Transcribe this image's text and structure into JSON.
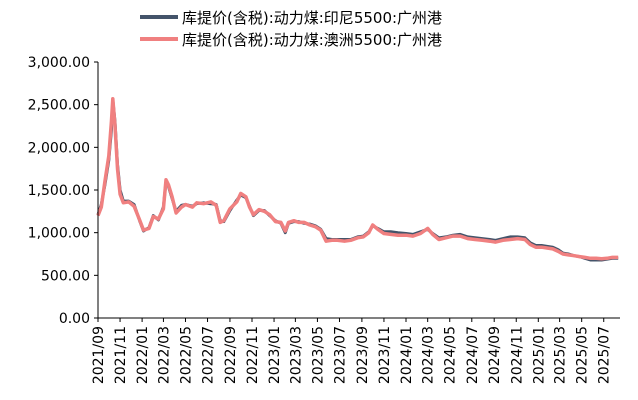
{
  "chart_data": {
    "type": "line",
    "title": "",
    "xlabel": "",
    "ylabel": "",
    "ylim": [
      0,
      3000
    ],
    "yticks": [
      0,
      500,
      1000,
      1500,
      2000,
      2500,
      3000
    ],
    "ytick_labels": [
      "0.00",
      "500.00",
      "1,000.00",
      "1,500.00",
      "2,000.00",
      "2,500.00",
      "3,000.00"
    ],
    "xlim": [
      "2021-09-01",
      "2025-08-15"
    ],
    "xtick_labels": [
      "2021/09",
      "2021/11",
      "2022/01",
      "2022/03",
      "2022/05",
      "2022/07",
      "2022/09",
      "2022/11",
      "2023/01",
      "2023/03",
      "2023/05",
      "2023/07",
      "2023/09",
      "2023/11",
      "2024/01",
      "2024/03",
      "2024/05",
      "2024/07",
      "2024/09",
      "2024/11",
      "2025/01",
      "2025/03",
      "2025/05",
      "2025/07"
    ],
    "legend_position": "top",
    "grid": false,
    "series": [
      {
        "name": "库提价(含税):动力煤:印尼5500:广州港",
        "color": "#44546a",
        "points": [
          [
            "2021-09-01",
            1210
          ],
          [
            "2021-09-10",
            1330
          ],
          [
            "2021-09-20",
            1560
          ],
          [
            "2021-10-01",
            1850
          ],
          [
            "2021-10-08",
            2200
          ],
          [
            "2021-10-12",
            2560
          ],
          [
            "2021-10-18",
            2300
          ],
          [
            "2021-10-25",
            1800
          ],
          [
            "2021-11-01",
            1500
          ],
          [
            "2021-11-10",
            1370
          ],
          [
            "2021-11-25",
            1370
          ],
          [
            "2021-12-10",
            1330
          ],
          [
            "2021-12-25",
            1140
          ],
          [
            "2022-01-05",
            1020
          ],
          [
            "2022-01-20",
            1060
          ],
          [
            "2022-02-01",
            1200
          ],
          [
            "2022-02-15",
            1150
          ],
          [
            "2022-03-01",
            1300
          ],
          [
            "2022-03-08",
            1600
          ],
          [
            "2022-03-15",
            1540
          ],
          [
            "2022-03-25",
            1400
          ],
          [
            "2022-04-05",
            1250
          ],
          [
            "2022-04-20",
            1320
          ],
          [
            "2022-05-01",
            1330
          ],
          [
            "2022-05-20",
            1310
          ],
          [
            "2022-06-01",
            1340
          ],
          [
            "2022-06-20",
            1350
          ],
          [
            "2022-07-10",
            1340
          ],
          [
            "2022-07-25",
            1330
          ],
          [
            "2022-08-05",
            1140
          ],
          [
            "2022-08-15",
            1130
          ],
          [
            "2022-09-01",
            1260
          ],
          [
            "2022-09-20",
            1380
          ],
          [
            "2022-10-01",
            1440
          ],
          [
            "2022-10-15",
            1410
          ],
          [
            "2022-10-25",
            1310
          ],
          [
            "2022-11-05",
            1200
          ],
          [
            "2022-11-20",
            1260
          ],
          [
            "2022-12-05",
            1260
          ],
          [
            "2022-12-20",
            1200
          ],
          [
            "2023-01-05",
            1140
          ],
          [
            "2023-01-20",
            1110
          ],
          [
            "2023-02-01",
            1000
          ],
          [
            "2023-02-10",
            1110
          ],
          [
            "2023-02-25",
            1130
          ],
          [
            "2023-03-10",
            1130
          ],
          [
            "2023-03-25",
            1110
          ],
          [
            "2023-04-10",
            1100
          ],
          [
            "2023-04-25",
            1080
          ],
          [
            "2023-05-10",
            1040
          ],
          [
            "2023-05-25",
            930
          ],
          [
            "2023-06-10",
            920
          ],
          [
            "2023-06-25",
            920
          ],
          [
            "2023-07-15",
            920
          ],
          [
            "2023-08-01",
            920
          ],
          [
            "2023-08-20",
            950
          ],
          [
            "2023-09-05",
            960
          ],
          [
            "2023-09-20",
            1010
          ],
          [
            "2023-10-01",
            1080
          ],
          [
            "2023-10-15",
            1050
          ],
          [
            "2023-11-01",
            1010
          ],
          [
            "2023-11-20",
            1010
          ],
          [
            "2023-12-10",
            1000
          ],
          [
            "2024-01-01",
            990
          ],
          [
            "2024-01-20",
            980
          ],
          [
            "2024-02-10",
            1010
          ],
          [
            "2024-03-01",
            1040
          ],
          [
            "2024-03-15",
            990
          ],
          [
            "2024-04-01",
            940
          ],
          [
            "2024-04-20",
            950
          ],
          [
            "2024-05-10",
            970
          ],
          [
            "2024-05-30",
            980
          ],
          [
            "2024-06-20",
            950
          ],
          [
            "2024-07-10",
            940
          ],
          [
            "2024-07-30",
            930
          ],
          [
            "2024-08-20",
            920
          ],
          [
            "2024-09-05",
            910
          ],
          [
            "2024-09-25",
            930
          ],
          [
            "2024-10-15",
            950
          ],
          [
            "2024-11-05",
            950
          ],
          [
            "2024-11-25",
            940
          ],
          [
            "2024-12-10",
            880
          ],
          [
            "2024-12-25",
            850
          ],
          [
            "2025-01-10",
            850
          ],
          [
            "2025-01-25",
            840
          ],
          [
            "2025-02-10",
            830
          ],
          [
            "2025-02-25",
            800
          ],
          [
            "2025-03-10",
            760
          ],
          [
            "2025-03-25",
            750
          ],
          [
            "2025-04-10",
            730
          ],
          [
            "2025-04-25",
            720
          ],
          [
            "2025-05-10",
            700
          ],
          [
            "2025-05-25",
            680
          ],
          [
            "2025-06-10",
            680
          ],
          [
            "2025-06-25",
            680
          ],
          [
            "2025-07-10",
            690
          ],
          [
            "2025-07-25",
            700
          ],
          [
            "2025-08-10",
            700
          ]
        ]
      },
      {
        "name": "库提价(含税):动力煤:澳洲5500:广州港",
        "color": "#f08080",
        "points": [
          [
            "2021-09-01",
            1200
          ],
          [
            "2021-09-10",
            1300
          ],
          [
            "2021-09-20",
            1600
          ],
          [
            "2021-10-01",
            1900
          ],
          [
            "2021-10-08",
            2300
          ],
          [
            "2021-10-12",
            2570
          ],
          [
            "2021-10-18",
            2250
          ],
          [
            "2021-10-25",
            1750
          ],
          [
            "2021-11-01",
            1450
          ],
          [
            "2021-11-10",
            1350
          ],
          [
            "2021-11-25",
            1360
          ],
          [
            "2021-12-10",
            1310
          ],
          [
            "2021-12-25",
            1150
          ],
          [
            "2022-01-05",
            1030
          ],
          [
            "2022-01-20",
            1050
          ],
          [
            "2022-02-01",
            1190
          ],
          [
            "2022-02-15",
            1160
          ],
          [
            "2022-03-01",
            1280
          ],
          [
            "2022-03-08",
            1620
          ],
          [
            "2022-03-15",
            1560
          ],
          [
            "2022-03-25",
            1420
          ],
          [
            "2022-04-05",
            1230
          ],
          [
            "2022-04-20",
            1300
          ],
          [
            "2022-05-01",
            1330
          ],
          [
            "2022-05-20",
            1300
          ],
          [
            "2022-06-01",
            1350
          ],
          [
            "2022-06-20",
            1340
          ],
          [
            "2022-07-10",
            1360
          ],
          [
            "2022-07-25",
            1320
          ],
          [
            "2022-08-05",
            1120
          ],
          [
            "2022-08-15",
            1140
          ],
          [
            "2022-09-01",
            1280
          ],
          [
            "2022-09-20",
            1360
          ],
          [
            "2022-10-01",
            1460
          ],
          [
            "2022-10-15",
            1420
          ],
          [
            "2022-10-25",
            1300
          ],
          [
            "2022-11-05",
            1210
          ],
          [
            "2022-11-20",
            1270
          ],
          [
            "2022-12-05",
            1250
          ],
          [
            "2022-12-20",
            1210
          ],
          [
            "2023-01-05",
            1130
          ],
          [
            "2023-01-20",
            1120
          ],
          [
            "2023-02-01",
            1020
          ],
          [
            "2023-02-10",
            1120
          ],
          [
            "2023-02-25",
            1140
          ],
          [
            "2023-03-10",
            1120
          ],
          [
            "2023-03-25",
            1120
          ],
          [
            "2023-04-10",
            1090
          ],
          [
            "2023-04-25",
            1070
          ],
          [
            "2023-05-10",
            1030
          ],
          [
            "2023-05-25",
            900
          ],
          [
            "2023-06-10",
            910
          ],
          [
            "2023-06-25",
            910
          ],
          [
            "2023-07-15",
            900
          ],
          [
            "2023-08-01",
            910
          ],
          [
            "2023-08-20",
            940
          ],
          [
            "2023-09-05",
            950
          ],
          [
            "2023-09-20",
            1000
          ],
          [
            "2023-10-01",
            1090
          ],
          [
            "2023-10-15",
            1040
          ],
          [
            "2023-11-01",
            990
          ],
          [
            "2023-11-20",
            980
          ],
          [
            "2023-12-10",
            970
          ],
          [
            "2024-01-01",
            970
          ],
          [
            "2024-01-20",
            960
          ],
          [
            "2024-02-10",
            990
          ],
          [
            "2024-03-01",
            1050
          ],
          [
            "2024-03-15",
            980
          ],
          [
            "2024-04-01",
            920
          ],
          [
            "2024-04-20",
            940
          ],
          [
            "2024-05-10",
            960
          ],
          [
            "2024-05-30",
            960
          ],
          [
            "2024-06-20",
            930
          ],
          [
            "2024-07-10",
            920
          ],
          [
            "2024-07-30",
            910
          ],
          [
            "2024-08-20",
            900
          ],
          [
            "2024-09-05",
            890
          ],
          [
            "2024-09-25",
            910
          ],
          [
            "2024-10-15",
            920
          ],
          [
            "2024-11-05",
            930
          ],
          [
            "2024-11-25",
            920
          ],
          [
            "2024-12-10",
            860
          ],
          [
            "2024-12-25",
            830
          ],
          [
            "2025-01-10",
            830
          ],
          [
            "2025-01-25",
            820
          ],
          [
            "2025-02-10",
            810
          ],
          [
            "2025-02-25",
            780
          ],
          [
            "2025-03-10",
            750
          ],
          [
            "2025-03-25",
            740
          ],
          [
            "2025-04-10",
            730
          ],
          [
            "2025-04-25",
            720
          ],
          [
            "2025-05-10",
            710
          ],
          [
            "2025-05-25",
            700
          ],
          [
            "2025-06-10",
            700
          ],
          [
            "2025-06-25",
            695
          ],
          [
            "2025-07-10",
            700
          ],
          [
            "2025-07-25",
            710
          ],
          [
            "2025-08-10",
            710
          ]
        ]
      }
    ]
  }
}
